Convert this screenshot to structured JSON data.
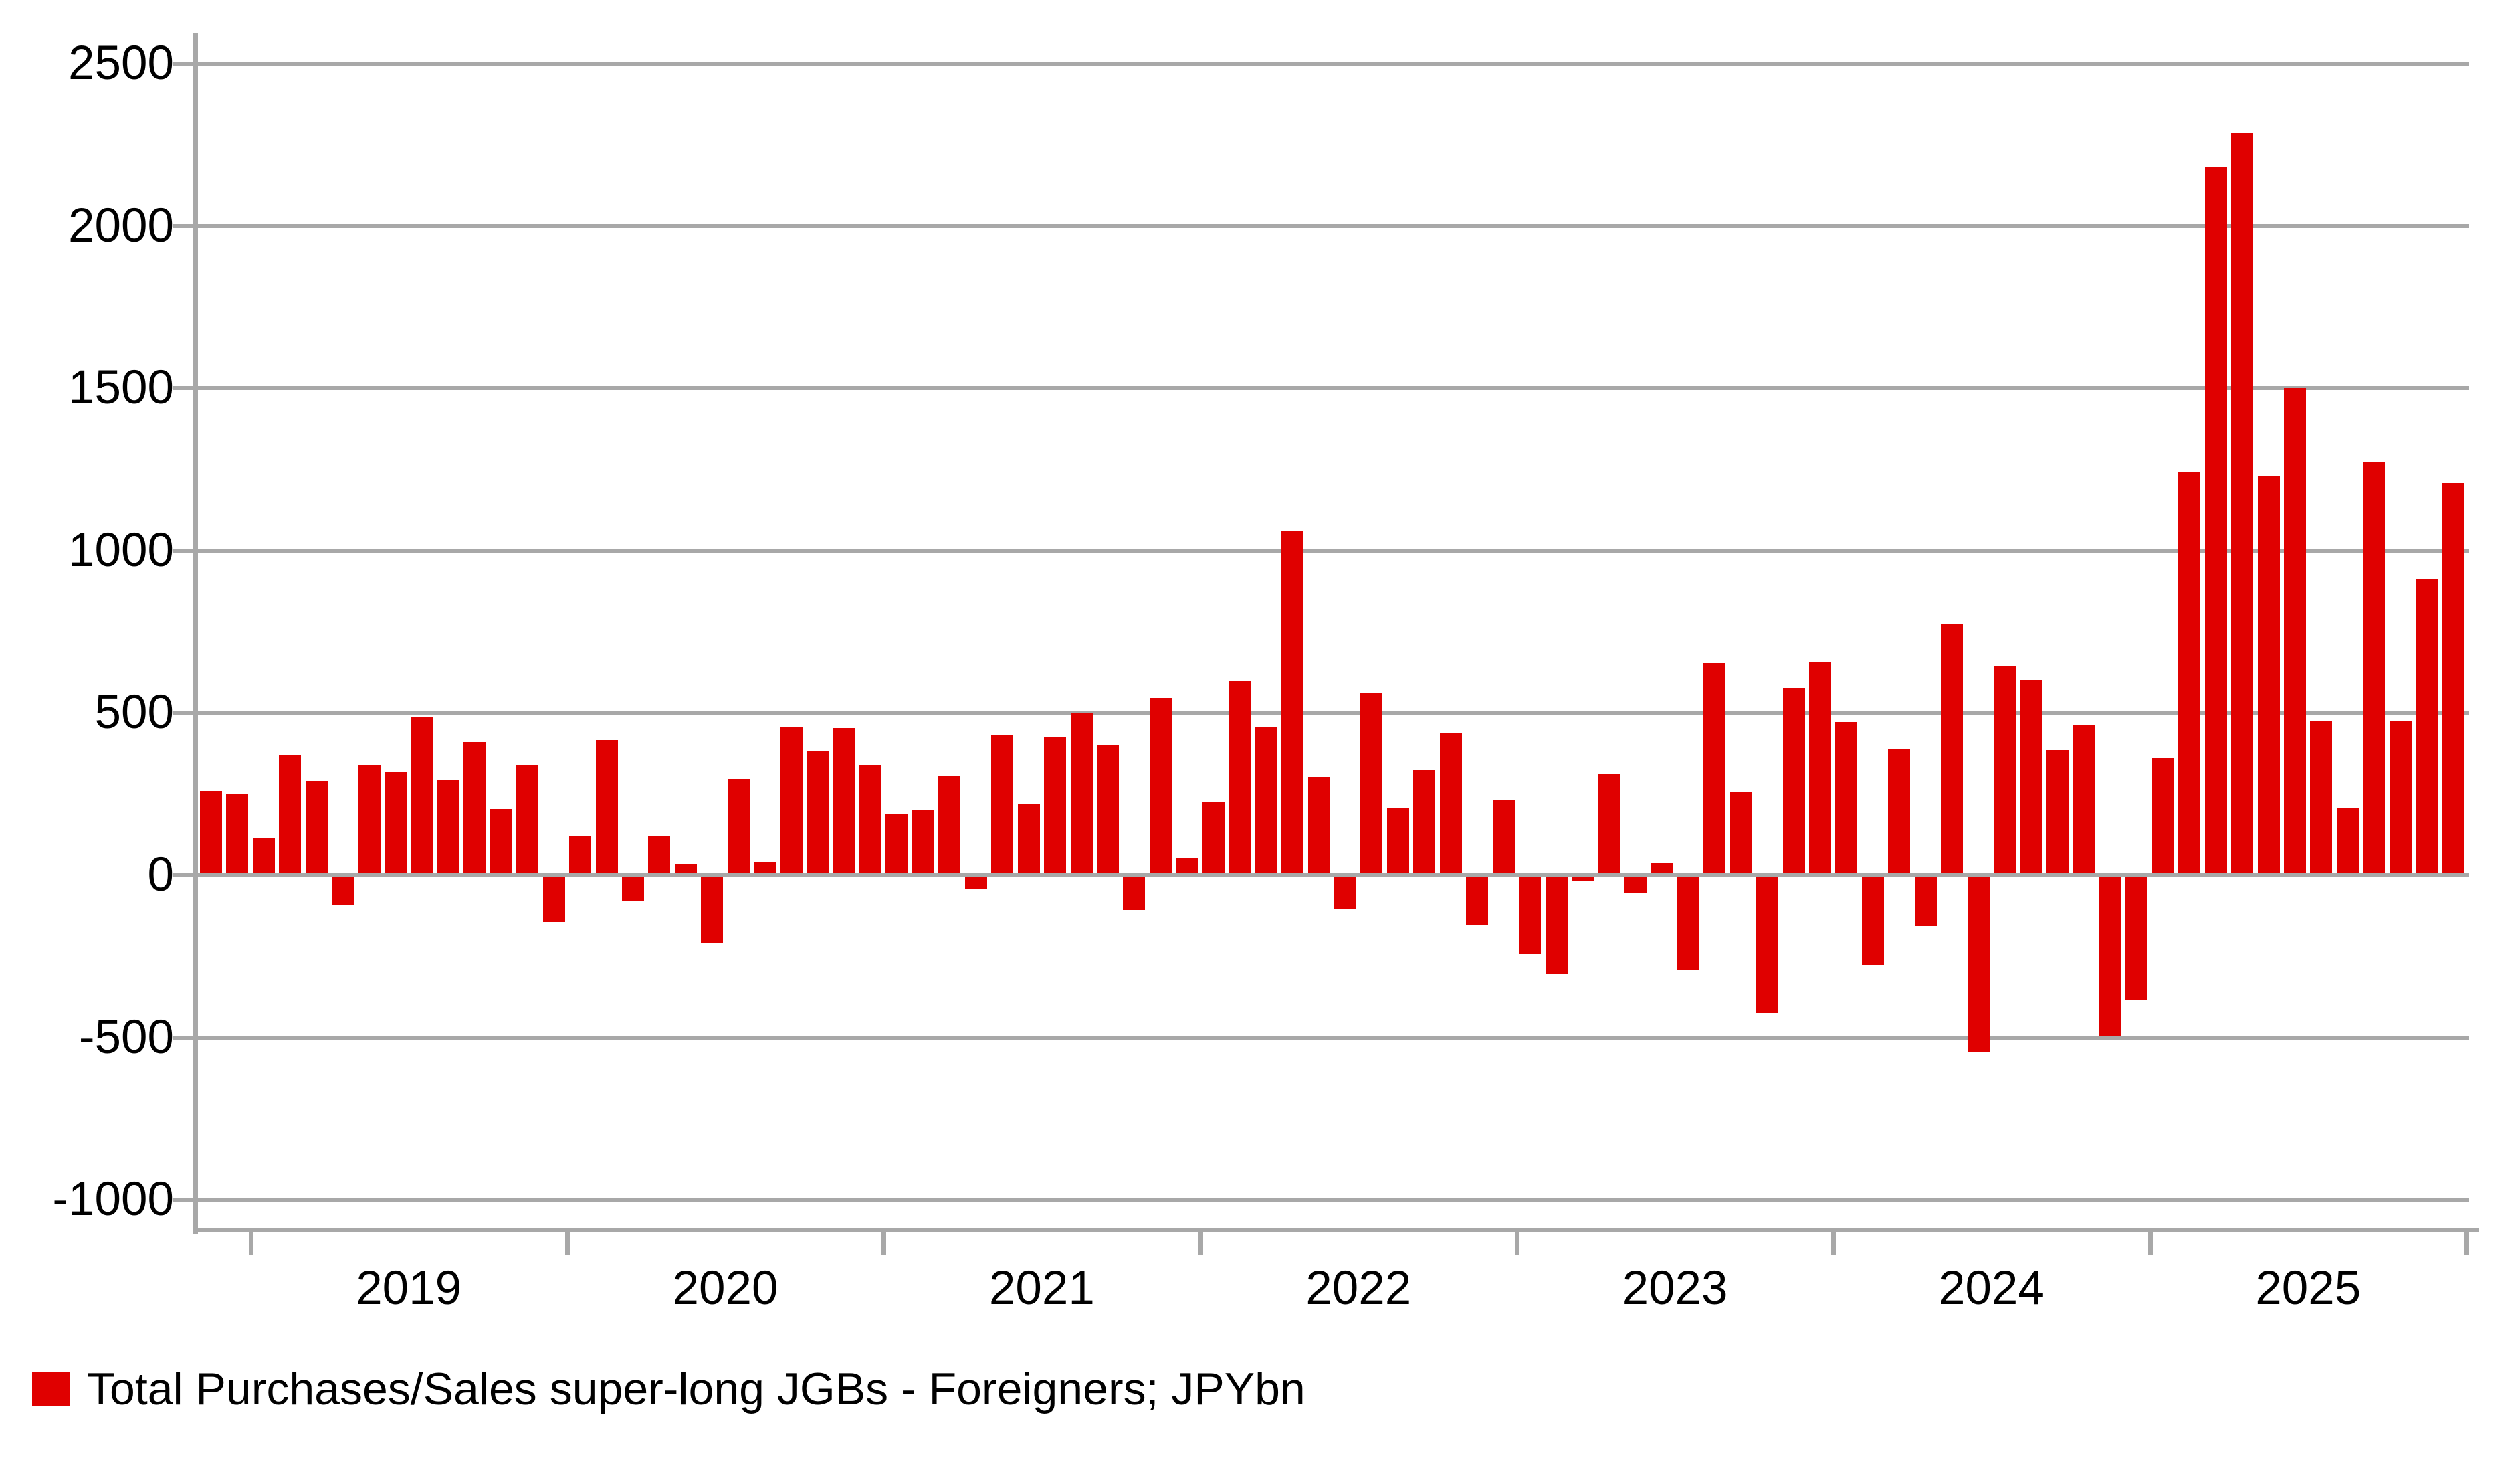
{
  "chart_data": {
    "type": "bar",
    "title": "",
    "legend_label": "Total Purchases/Sales super-long JGBs - Foreigners; JPYbn",
    "unit": "JPYbn",
    "bar_color": "#e00000",
    "grid_color": "#a8a8a8",
    "text_color": "#000000",
    "grid": true,
    "legend_position": "bottom-left",
    "ytick_range": [
      -1000,
      2500
    ],
    "y_step": 500,
    "ylim": [
      -1050,
      2550
    ],
    "y_tick_labels": [
      "2500",
      "2000",
      "1500",
      "1000",
      "500",
      "0",
      "-500",
      "-1000"
    ],
    "y_tick_values": [
      2500,
      2000,
      1500,
      1000,
      500,
      0,
      -500,
      -1000
    ],
    "x_year_labels": [
      "2019",
      "2020",
      "2021",
      "2022",
      "2023",
      "2024",
      "2025"
    ],
    "x": [
      "2018-11",
      "2018-12",
      "2019-01",
      "2019-02",
      "2019-03",
      "2019-04",
      "2019-05",
      "2019-06",
      "2019-07",
      "2019-08",
      "2019-09",
      "2019-10",
      "2019-11",
      "2019-12",
      "2020-01",
      "2020-02",
      "2020-03",
      "2020-04",
      "2020-05",
      "2020-06",
      "2020-07",
      "2020-08",
      "2020-09",
      "2020-10",
      "2020-11",
      "2020-12",
      "2021-01",
      "2021-02",
      "2021-03",
      "2021-04",
      "2021-05",
      "2021-06",
      "2021-07",
      "2021-08",
      "2021-09",
      "2021-10",
      "2021-11",
      "2021-12",
      "2022-01",
      "2022-02",
      "2022-03",
      "2022-04",
      "2022-05",
      "2022-06",
      "2022-07",
      "2022-08",
      "2022-09",
      "2022-10",
      "2022-11",
      "2022-12",
      "2023-01",
      "2023-02",
      "2023-03",
      "2023-04",
      "2023-05",
      "2023-06",
      "2023-07",
      "2023-08",
      "2023-09",
      "2023-10",
      "2023-11",
      "2023-12",
      "2024-01",
      "2024-02",
      "2024-03",
      "2024-04",
      "2024-05",
      "2024-06",
      "2024-07",
      "2024-08",
      "2024-09",
      "2024-10",
      "2024-11",
      "2024-12",
      "2025-01",
      "2025-02",
      "2025-03",
      "2025-04",
      "2025-05",
      "2025-06",
      "2025-07",
      "2025-08",
      "2025-09",
      "2025-10",
      "2025-11",
      "2025-12"
    ],
    "values": [
      260,
      249,
      114,
      370,
      289,
      -92,
      340,
      318,
      486,
      293,
      411,
      205,
      337,
      -144,
      121,
      417,
      -78,
      121,
      32,
      -209,
      296,
      40,
      455,
      382,
      453,
      341,
      187,
      200,
      305,
      -44,
      430,
      220,
      427,
      498,
      401,
      -108,
      546,
      51,
      227,
      598,
      456,
      1062,
      300,
      -105,
      562,
      209,
      323,
      440,
      -154,
      233,
      -244,
      -303,
      -19,
      312,
      -54,
      37,
      -290,
      653,
      256,
      -425,
      576,
      655,
      472,
      -276,
      389,
      -156,
      773,
      -546,
      646,
      601,
      385,
      463,
      -497,
      -384,
      361,
      1240,
      2180,
      2285,
      1230,
      1500,
      477,
      207,
      1272,
      477,
      910,
      1208
    ]
  }
}
